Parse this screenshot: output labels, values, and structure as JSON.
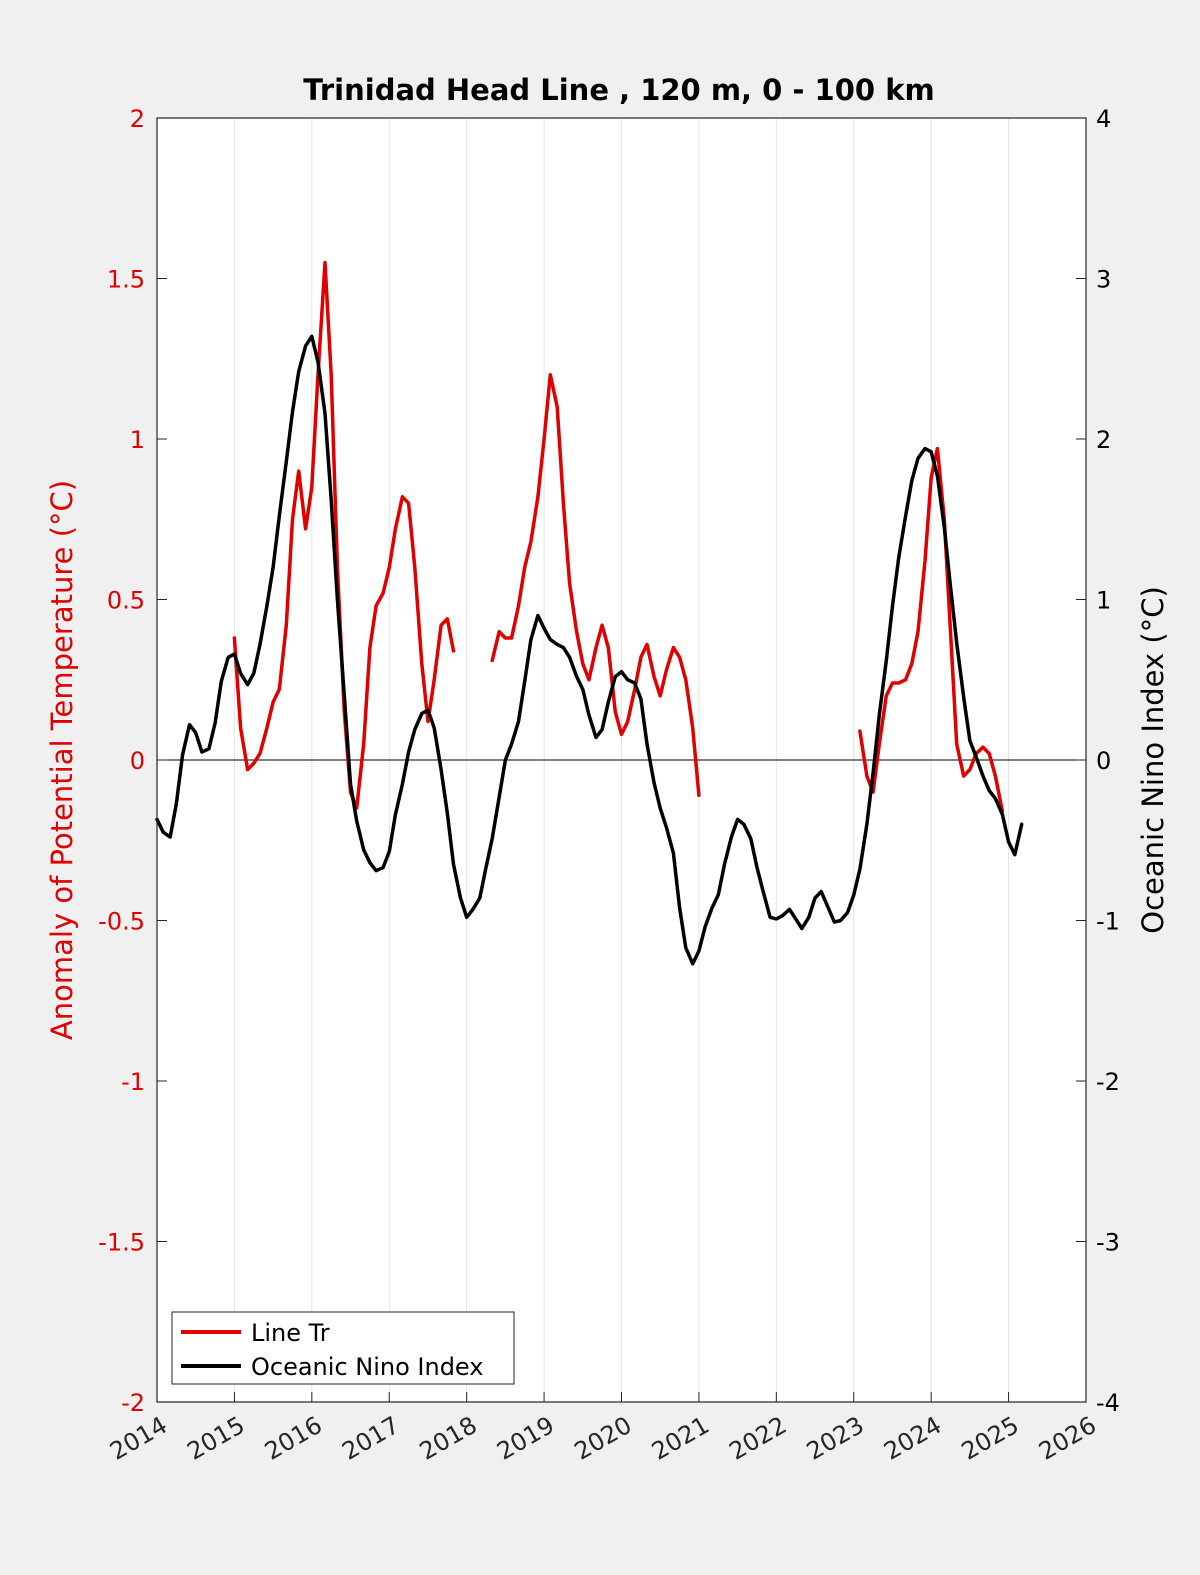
{
  "chart_data": {
    "type": "line",
    "title": "Trinidad Head Line , 120 m, 0 - 100 km",
    "ylabel_left": "Anomaly of Potential Temperature (°C)",
    "ylabel_right": "Oceanic Nino Index (°C)",
    "xlim": [
      2014,
      2026
    ],
    "ylim_left": [
      -2,
      2
    ],
    "ylim_right": [
      -4,
      4
    ],
    "x_ticks": [
      "2014",
      "2015",
      "2016",
      "2017",
      "2018",
      "2019",
      "2020",
      "2021",
      "2022",
      "2023",
      "2024",
      "2025",
      "2026"
    ],
    "y_ticks_left": [
      "2",
      "1.5",
      "1",
      "0.5",
      "0",
      "-0.5",
      "-1",
      "-1.5",
      "-2"
    ],
    "y_ticks_right": [
      "4",
      "3",
      "2",
      "1",
      "0",
      "-1",
      "-2",
      "-3",
      "-4"
    ],
    "grid": "vertical",
    "legend_position": "bottom-left",
    "colors": {
      "line_tr": "#e00000",
      "oni": "#000000",
      "left_axis": "#e00000",
      "right_axis": "#000000"
    },
    "series": [
      {
        "name": "Line Tr",
        "axis": "left",
        "segments": [
          [
            [
              2015.0,
              0.38
            ],
            [
              2015.08,
              0.1
            ],
            [
              2015.17,
              -0.03
            ],
            [
              2015.25,
              -0.01
            ],
            [
              2015.33,
              0.02
            ],
            [
              2015.42,
              0.1
            ],
            [
              2015.5,
              0.18
            ],
            [
              2015.58,
              0.22
            ],
            [
              2015.67,
              0.42
            ],
            [
              2015.75,
              0.75
            ],
            [
              2015.83,
              0.9
            ],
            [
              2015.92,
              0.72
            ],
            [
              2016.0,
              0.85
            ],
            [
              2016.08,
              1.2
            ],
            [
              2016.17,
              1.55
            ],
            [
              2016.25,
              1.2
            ],
            [
              2016.33,
              0.6
            ],
            [
              2016.42,
              0.15
            ],
            [
              2016.5,
              -0.1
            ],
            [
              2016.58,
              -0.15
            ],
            [
              2016.67,
              0.05
            ],
            [
              2016.75,
              0.35
            ],
            [
              2016.83,
              0.48
            ],
            [
              2016.92,
              0.52
            ],
            [
              2017.0,
              0.6
            ],
            [
              2017.08,
              0.72
            ],
            [
              2017.17,
              0.82
            ],
            [
              2017.25,
              0.8
            ],
            [
              2017.33,
              0.6
            ],
            [
              2017.42,
              0.3
            ],
            [
              2017.5,
              0.12
            ],
            [
              2017.58,
              0.25
            ],
            [
              2017.67,
              0.42
            ],
            [
              2017.75,
              0.44
            ],
            [
              2017.83,
              0.34
            ]
          ],
          [
            [
              2018.33,
              0.31
            ],
            [
              2018.42,
              0.4
            ],
            [
              2018.5,
              0.38
            ],
            [
              2018.58,
              0.38
            ],
            [
              2018.67,
              0.48
            ],
            [
              2018.75,
              0.6
            ],
            [
              2018.83,
              0.68
            ],
            [
              2018.92,
              0.82
            ],
            [
              2019.0,
              1.0
            ],
            [
              2019.08,
              1.2
            ],
            [
              2019.17,
              1.1
            ],
            [
              2019.25,
              0.8
            ],
            [
              2019.33,
              0.55
            ],
            [
              2019.42,
              0.4
            ],
            [
              2019.5,
              0.3
            ],
            [
              2019.58,
              0.25
            ],
            [
              2019.67,
              0.35
            ],
            [
              2019.75,
              0.42
            ],
            [
              2019.83,
              0.35
            ],
            [
              2019.92,
              0.15
            ],
            [
              2020.0,
              0.08
            ],
            [
              2020.08,
              0.12
            ],
            [
              2020.17,
              0.22
            ],
            [
              2020.25,
              0.32
            ],
            [
              2020.33,
              0.36
            ],
            [
              2020.42,
              0.26
            ],
            [
              2020.5,
              0.2
            ],
            [
              2020.58,
              0.28
            ],
            [
              2020.67,
              0.35
            ],
            [
              2020.75,
              0.32
            ],
            [
              2020.83,
              0.25
            ],
            [
              2020.92,
              0.1
            ],
            [
              2021.0,
              -0.11
            ]
          ],
          [
            [
              2023.08,
              0.09
            ],
            [
              2023.17,
              -0.05
            ],
            [
              2023.25,
              -0.1
            ],
            [
              2023.33,
              0.05
            ],
            [
              2023.42,
              0.2
            ],
            [
              2023.5,
              0.24
            ],
            [
              2023.58,
              0.24
            ],
            [
              2023.67,
              0.25
            ],
            [
              2023.75,
              0.3
            ],
            [
              2023.83,
              0.4
            ],
            [
              2023.92,
              0.62
            ],
            [
              2024.0,
              0.88
            ],
            [
              2024.08,
              0.97
            ],
            [
              2024.17,
              0.75
            ],
            [
              2024.25,
              0.4
            ],
            [
              2024.33,
              0.05
            ],
            [
              2024.42,
              -0.05
            ],
            [
              2024.5,
              -0.03
            ],
            [
              2024.58,
              0.02
            ],
            [
              2024.67,
              0.04
            ],
            [
              2024.75,
              0.02
            ],
            [
              2024.83,
              -0.05
            ],
            [
              2024.92,
              -0.16
            ]
          ]
        ]
      },
      {
        "name": "Oceanic Nino Index",
        "axis": "right",
        "segments": [
          [
            [
              2014.0,
              -0.37
            ],
            [
              2014.08,
              -0.45
            ],
            [
              2014.17,
              -0.48
            ],
            [
              2014.25,
              -0.27
            ],
            [
              2014.33,
              0.03
            ],
            [
              2014.42,
              0.22
            ],
            [
              2014.5,
              0.17
            ],
            [
              2014.58,
              0.05
            ],
            [
              2014.67,
              0.07
            ],
            [
              2014.75,
              0.23
            ],
            [
              2014.83,
              0.49
            ],
            [
              2014.92,
              0.64
            ],
            [
              2015.0,
              0.66
            ],
            [
              2015.08,
              0.54
            ],
            [
              2015.17,
              0.47
            ],
            [
              2015.25,
              0.54
            ],
            [
              2015.33,
              0.72
            ],
            [
              2015.42,
              0.96
            ],
            [
              2015.5,
              1.2
            ],
            [
              2015.58,
              1.52
            ],
            [
              2015.67,
              1.86
            ],
            [
              2015.75,
              2.17
            ],
            [
              2015.83,
              2.42
            ],
            [
              2015.92,
              2.58
            ],
            [
              2016.0,
              2.64
            ],
            [
              2016.08,
              2.48
            ],
            [
              2016.17,
              2.16
            ],
            [
              2016.25,
              1.62
            ],
            [
              2016.33,
              1.0
            ],
            [
              2016.42,
              0.4
            ],
            [
              2016.5,
              -0.15
            ],
            [
              2016.58,
              -0.38
            ],
            [
              2016.67,
              -0.56
            ],
            [
              2016.75,
              -0.64
            ],
            [
              2016.83,
              -0.69
            ],
            [
              2016.92,
              -0.67
            ],
            [
              2017.0,
              -0.57
            ],
            [
              2017.08,
              -0.34
            ],
            [
              2017.17,
              -0.15
            ],
            [
              2017.25,
              0.05
            ],
            [
              2017.33,
              0.19
            ],
            [
              2017.42,
              0.29
            ],
            [
              2017.5,
              0.31
            ],
            [
              2017.58,
              0.2
            ],
            [
              2017.67,
              -0.06
            ],
            [
              2017.75,
              -0.33
            ],
            [
              2017.83,
              -0.65
            ],
            [
              2017.92,
              -0.86
            ],
            [
              2018.0,
              -0.98
            ],
            [
              2018.08,
              -0.93
            ],
            [
              2018.17,
              -0.86
            ],
            [
              2018.25,
              -0.67
            ],
            [
              2018.33,
              -0.49
            ],
            [
              2018.42,
              -0.23
            ],
            [
              2018.5,
              0.0
            ],
            [
              2018.58,
              0.1
            ],
            [
              2018.67,
              0.24
            ],
            [
              2018.75,
              0.49
            ],
            [
              2018.83,
              0.75
            ],
            [
              2018.92,
              0.9
            ],
            [
              2019.0,
              0.82
            ],
            [
              2019.08,
              0.75
            ],
            [
              2019.17,
              0.72
            ],
            [
              2019.25,
              0.7
            ],
            [
              2019.33,
              0.64
            ],
            [
              2019.42,
              0.52
            ],
            [
              2019.5,
              0.44
            ],
            [
              2019.58,
              0.28
            ],
            [
              2019.67,
              0.14
            ],
            [
              2019.75,
              0.19
            ],
            [
              2019.83,
              0.36
            ],
            [
              2019.92,
              0.52
            ],
            [
              2020.0,
              0.55
            ],
            [
              2020.08,
              0.5
            ],
            [
              2020.17,
              0.48
            ],
            [
              2020.25,
              0.38
            ],
            [
              2020.33,
              0.1
            ],
            [
              2020.42,
              -0.14
            ],
            [
              2020.5,
              -0.3
            ],
            [
              2020.58,
              -0.42
            ],
            [
              2020.67,
              -0.58
            ],
            [
              2020.75,
              -0.92
            ],
            [
              2020.83,
              -1.17
            ],
            [
              2020.92,
              -1.27
            ],
            [
              2021.0,
              -1.19
            ],
            [
              2021.08,
              -1.04
            ],
            [
              2021.17,
              -0.92
            ],
            [
              2021.25,
              -0.84
            ],
            [
              2021.33,
              -0.65
            ],
            [
              2021.42,
              -0.48
            ],
            [
              2021.5,
              -0.37
            ],
            [
              2021.58,
              -0.4
            ],
            [
              2021.67,
              -0.49
            ],
            [
              2021.75,
              -0.67
            ],
            [
              2021.83,
              -0.82
            ],
            [
              2021.92,
              -0.98
            ],
            [
              2022.0,
              -0.99
            ],
            [
              2022.08,
              -0.97
            ],
            [
              2022.17,
              -0.93
            ],
            [
              2022.25,
              -0.99
            ],
            [
              2022.33,
              -1.05
            ],
            [
              2022.42,
              -0.98
            ],
            [
              2022.5,
              -0.86
            ],
            [
              2022.58,
              -0.82
            ],
            [
              2022.67,
              -0.92
            ],
            [
              2022.75,
              -1.01
            ],
            [
              2022.83,
              -1.0
            ],
            [
              2022.92,
              -0.95
            ],
            [
              2023.0,
              -0.84
            ],
            [
              2023.08,
              -0.68
            ],
            [
              2023.17,
              -0.4
            ],
            [
              2023.25,
              -0.08
            ],
            [
              2023.33,
              0.28
            ],
            [
              2023.42,
              0.62
            ],
            [
              2023.5,
              0.96
            ],
            [
              2023.58,
              1.26
            ],
            [
              2023.67,
              1.52
            ],
            [
              2023.75,
              1.74
            ],
            [
              2023.83,
              1.88
            ],
            [
              2023.92,
              1.94
            ],
            [
              2024.0,
              1.92
            ],
            [
              2024.08,
              1.77
            ],
            [
              2024.17,
              1.45
            ],
            [
              2024.25,
              1.08
            ],
            [
              2024.33,
              0.73
            ],
            [
              2024.42,
              0.39
            ],
            [
              2024.5,
              0.12
            ],
            [
              2024.58,
              0.02
            ],
            [
              2024.67,
              -0.1
            ],
            [
              2024.75,
              -0.19
            ],
            [
              2024.83,
              -0.24
            ],
            [
              2024.92,
              -0.34
            ],
            [
              2025.0,
              -0.51
            ],
            [
              2025.08,
              -0.59
            ],
            [
              2025.17,
              -0.4
            ]
          ]
        ]
      }
    ]
  }
}
